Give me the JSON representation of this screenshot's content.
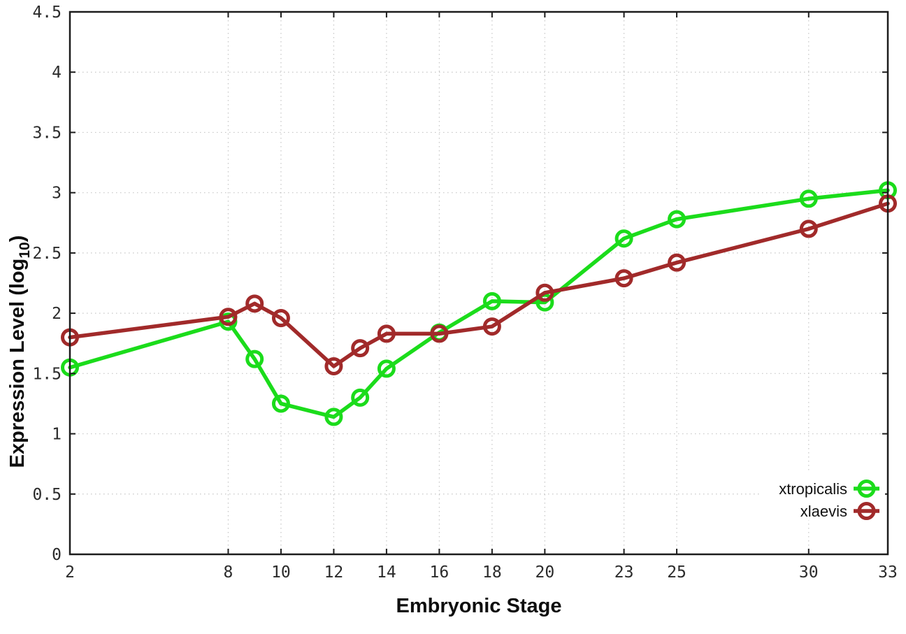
{
  "chart_data": {
    "type": "line",
    "title": "",
    "xlabel": "Embryonic Stage",
    "ylabel": {
      "text": "Expression Level (log",
      "sub": "10",
      "close": ")"
    },
    "x": [
      2,
      8,
      9,
      10,
      12,
      13,
      14,
      16,
      18,
      20,
      23,
      25,
      30,
      33
    ],
    "series": [
      {
        "name": "xtropicalis",
        "color": "#1bdc1b",
        "marker": "open-circle",
        "values": [
          1.55,
          1.93,
          1.62,
          1.25,
          1.14,
          1.3,
          1.54,
          1.84,
          2.1,
          2.09,
          2.62,
          2.78,
          2.95,
          3.02
        ]
      },
      {
        "name": "xlaevis",
        "color": "#a12a2a",
        "marker": "open-circle",
        "values": [
          1.8,
          1.97,
          2.08,
          1.96,
          1.56,
          1.71,
          1.83,
          1.83,
          1.89,
          2.17,
          2.29,
          2.42,
          2.7,
          2.91
        ]
      }
    ],
    "xlim": [
      2,
      33
    ],
    "ylim": [
      0,
      4.5
    ],
    "xticks": [
      2,
      8,
      10,
      12,
      14,
      16,
      18,
      20,
      23,
      25,
      30,
      33
    ],
    "yticks": [
      0,
      0.5,
      1,
      1.5,
      2,
      2.5,
      3,
      3.5,
      4,
      4.5
    ],
    "grid": "dotted",
    "legend_position": "bottom-right"
  },
  "style": {
    "background": "#ffffff",
    "grid_color": "#c6c6c6",
    "axis_color": "#1c1c1c",
    "tick_label_color": "#2b2b2b"
  }
}
